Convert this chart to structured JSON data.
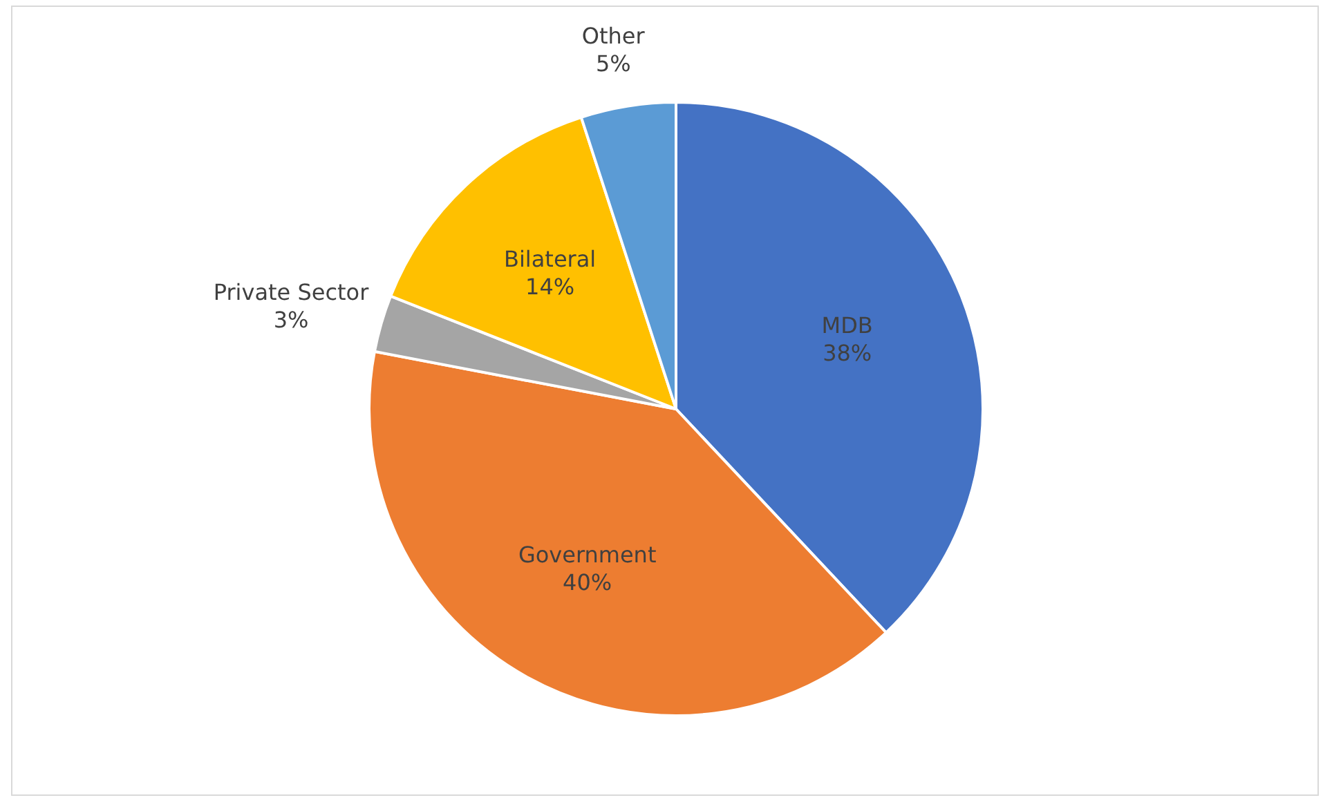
{
  "chart_data": {
    "type": "pie",
    "categories": [
      "MDB",
      "Government",
      "Private Sector",
      "Bilateral",
      "Other"
    ],
    "values": [
      38,
      40,
      3,
      14,
      5
    ],
    "colors": [
      "#4472c4",
      "#ed7d31",
      "#a5a5a5",
      "#ffc000",
      "#5b9bd5"
    ],
    "value_labels": [
      "38%",
      "40%",
      "3%",
      "14%",
      "5%"
    ],
    "legend": false
  }
}
